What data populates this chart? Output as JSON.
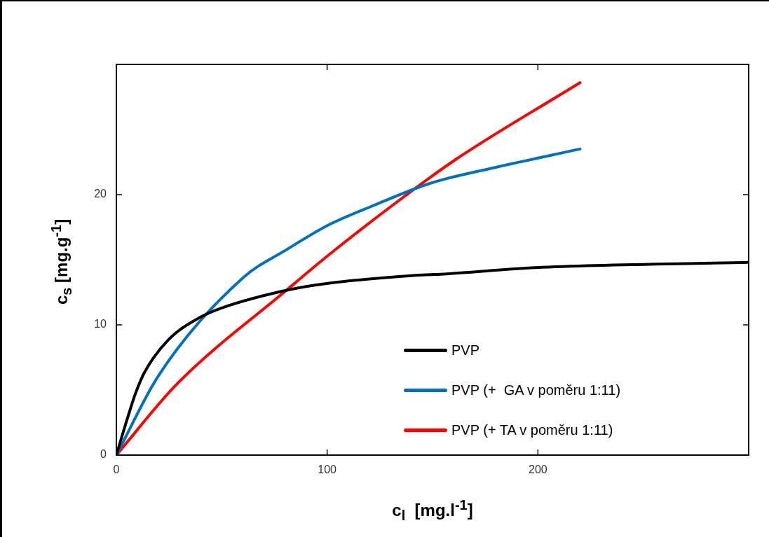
{
  "chart_data": {
    "type": "line",
    "xlabel": "c$_{l}$  [mg.l$^{-1}$]",
    "ylabel": "c$_{s}$ [mg.g$^{-1}$]",
    "xlim": [
      0,
      300
    ],
    "ylim": [
      0,
      30
    ],
    "xticks": [
      0,
      100,
      200
    ],
    "yticks": [
      0,
      10,
      20
    ],
    "grid": false,
    "legend": "bottom right",
    "marker": "none",
    "line_style": "solid",
    "series": [
      {
        "name": "PVP",
        "color": "#000000",
        "x": [
          0,
          5.2,
          9,
          13.5,
          25,
          40,
          50,
          82,
          101,
          142,
          155,
          199,
          300
        ],
        "values": [
          0,
          2.8,
          4.7,
          6.4,
          8.9,
          10.6,
          11.3,
          12.7,
          13.2,
          13.8,
          13.9,
          14.4,
          14.8
        ]
      },
      {
        "name": "PVP (+  GA v poměru 1:11)",
        "color": "#0070c0",
        "x": [
          0,
          20,
          60,
          81,
          101,
          121,
          149.5,
          180,
          220
        ],
        "values": [
          0,
          6.1,
          13.6,
          15.8,
          17.7,
          19.1,
          20.9,
          22.1,
          23.5
        ]
      },
      {
        "name": "PVP (+ TA v poměru 1:11)",
        "color": "#ff0000",
        "x": [
          0,
          29,
          81,
          101,
          132,
          161,
          220
        ],
        "values": [
          0,
          5.5,
          12.7,
          15.4,
          19.3,
          22.7,
          28.6
        ]
      }
    ]
  }
}
